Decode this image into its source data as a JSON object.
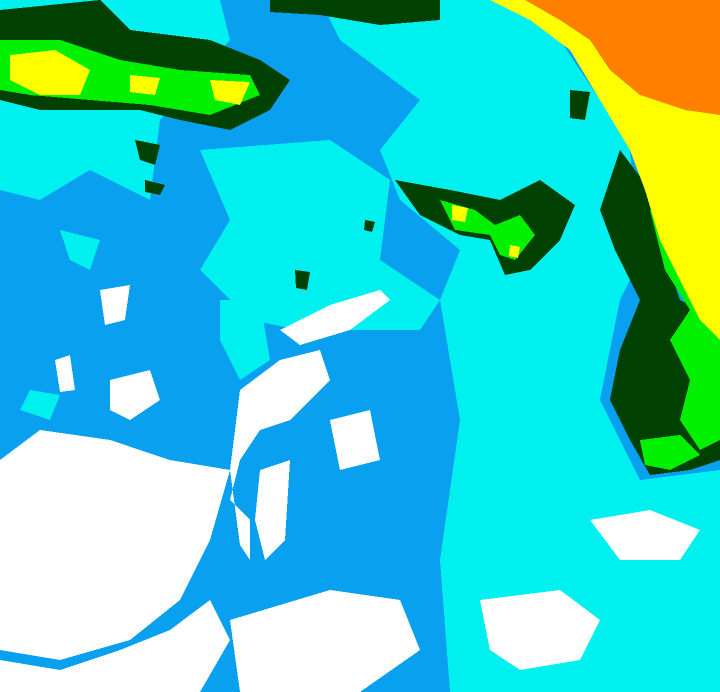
{
  "map": {
    "type": "classified-raster",
    "legend": [],
    "colors": {
      "background": "#0aa0f0",
      "cyan": "#00f0f0",
      "white": "#ffffff",
      "dark_green": "#004000",
      "green": "#00f000",
      "yellow": "#ffff00",
      "orange": "#ff8000"
    }
  }
}
